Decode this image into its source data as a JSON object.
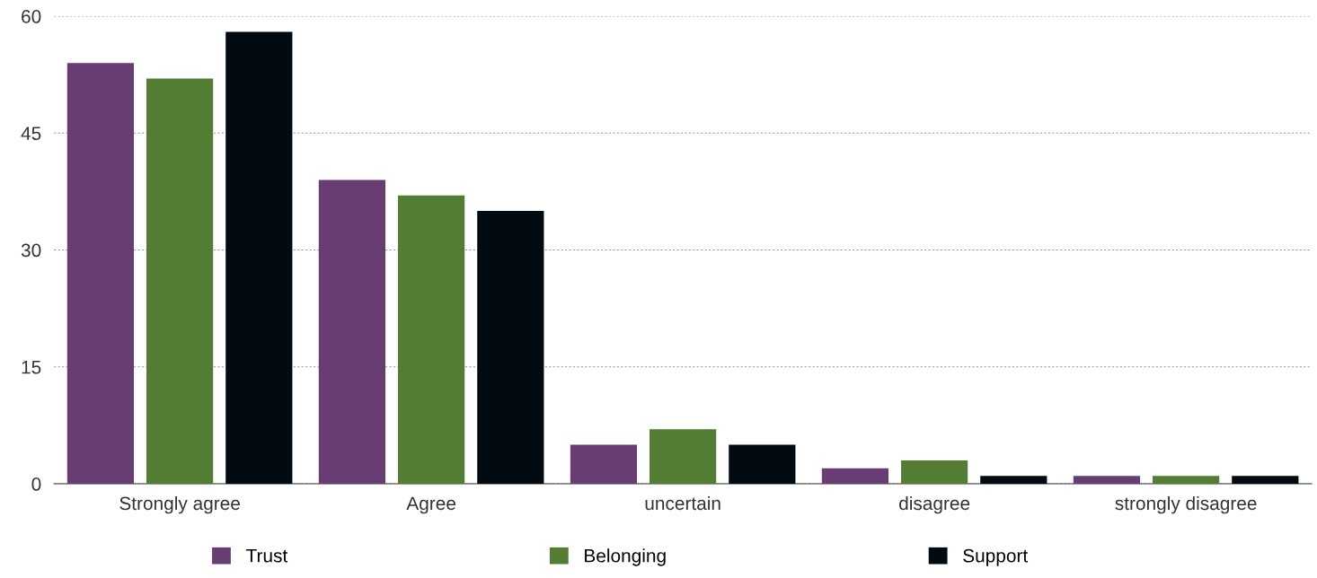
{
  "chart_data": {
    "type": "bar",
    "categories": [
      "Strongly agree",
      "Agree",
      "uncertain",
      "disagree",
      "strongly disagree"
    ],
    "series": [
      {
        "name": "Trust",
        "color": "#673d73",
        "values": [
          54,
          39,
          5,
          2,
          1
        ]
      },
      {
        "name": "Belonging",
        "color": "#527d32",
        "values": [
          52,
          37,
          7,
          3,
          1
        ]
      },
      {
        "name": "Support",
        "color": "#020a12",
        "values": [
          58,
          35,
          5,
          1,
          1
        ]
      }
    ],
    "ylim": [
      0,
      60
    ],
    "yticks": [
      0,
      15,
      30,
      45,
      60
    ],
    "grid": "y",
    "legend": "bottom"
  }
}
